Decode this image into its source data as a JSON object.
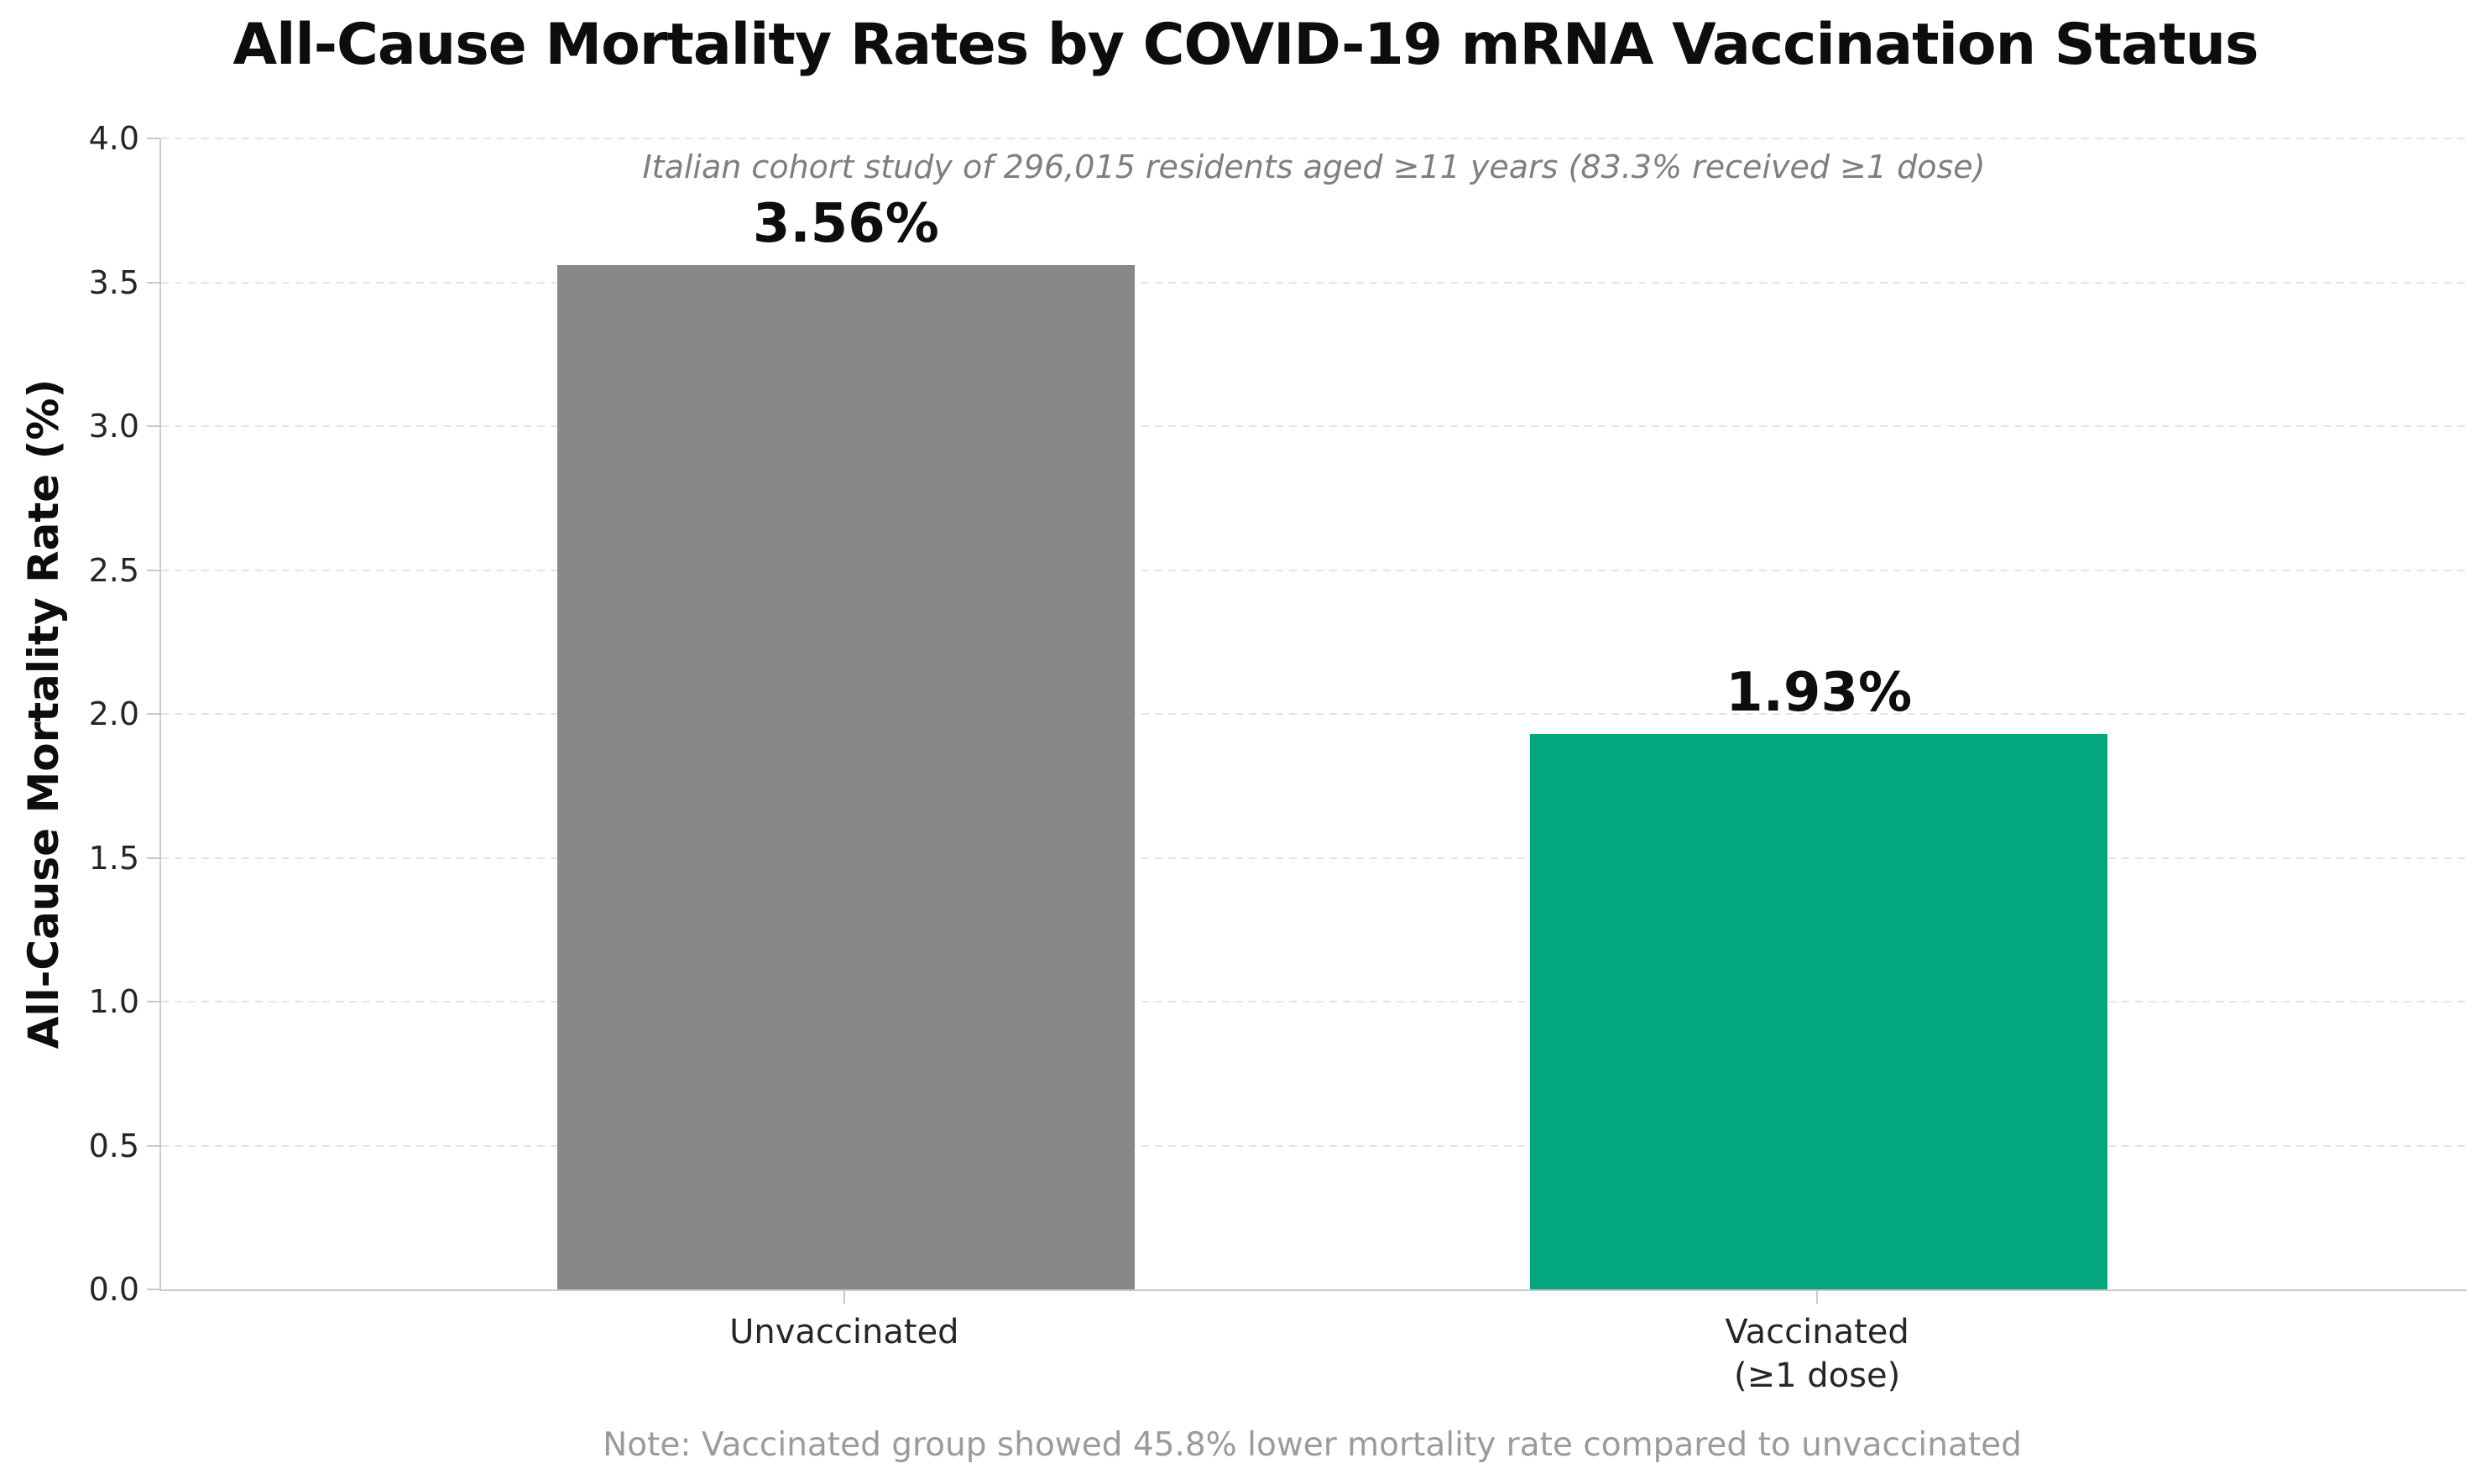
{
  "chart_data": {
    "type": "bar",
    "title": "All-Cause Mortality Rates by COVID-19 mRNA Vaccination Status",
    "subtitle": "Italian cohort study of 296,015 residents aged ≥11 years (83.3% received ≥1 dose)",
    "note": "Note: Vaccinated group showed 45.8% lower mortality rate compared to unvaccinated",
    "categories": [
      "Unvaccinated",
      "Vaccinated\n(≥1 dose)"
    ],
    "values": [
      3.56,
      1.93
    ],
    "value_labels": [
      "3.56%",
      "1.93%"
    ],
    "bar_colors": [
      "#888888",
      "#04a77d"
    ],
    "xlabel": "",
    "ylabel": "All-Cause Mortality Rate (%)",
    "ylim": [
      0.0,
      4.0
    ],
    "yticks": [
      0.0,
      0.5,
      1.0,
      1.5,
      2.0,
      2.5,
      3.0,
      3.5,
      4.0
    ],
    "ytick_labels": [
      "0.0",
      "0.5",
      "1.0",
      "1.5",
      "2.0",
      "2.5",
      "3.0",
      "3.5",
      "4.0"
    ],
    "grid": true,
    "grid_axis": "y",
    "grid_style": "dashed",
    "legend": "none",
    "colors": {
      "background": "#ffffff",
      "title": "#0d0d0d",
      "subtitle": "#7f7f7f",
      "tick_labels": "#262626",
      "gridline": "#e4e4e4",
      "spine": "#c9c9c9",
      "note": "#9b9b9b",
      "bar_unvaccinated": "#888888",
      "bar_vaccinated": "#04a77d"
    }
  }
}
